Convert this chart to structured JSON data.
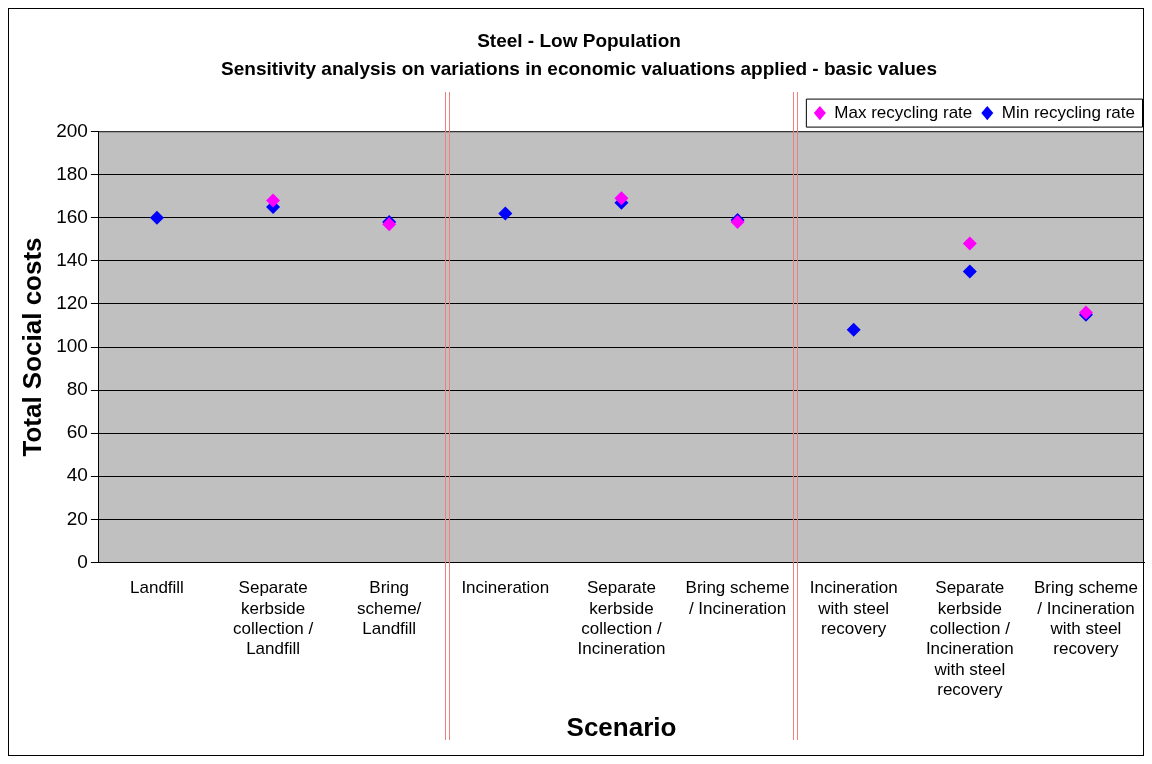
{
  "chart_data": {
    "type": "scatter",
    "title": "Steel - Low Population",
    "subtitle": "Sensitivity analysis on variations in economic valuations applied - basic values",
    "xlabel": "Scenario",
    "ylabel": "Total Social costs",
    "categories": [
      "Landfill",
      "Separate kerbside collection / Landfill",
      "Bring scheme/ Landfill",
      "Incineration",
      "Separate kerbside collection / Incineration",
      "Bring scheme / Incineration",
      "Incineration with steel recovery",
      "Separate kerbside collection / Incineration with steel recovery",
      "Bring scheme / Incineration with steel recovery"
    ],
    "series": [
      {
        "name": "Min recycling rate",
        "color": "#0000ff",
        "values": [
          160,
          165,
          158,
          162,
          167,
          159,
          108,
          135,
          115
        ]
      },
      {
        "name": "Max recycling rate",
        "color": "#ff00ff",
        "values": [
          null,
          168,
          157,
          null,
          169,
          158,
          null,
          148,
          116
        ]
      }
    ],
    "ylim": [
      0,
      200
    ],
    "yticks": [
      0,
      20,
      40,
      60,
      80,
      100,
      120,
      140,
      160,
      180,
      200
    ],
    "grid": "y",
    "legend": "top right",
    "marker": "diamond"
  }
}
